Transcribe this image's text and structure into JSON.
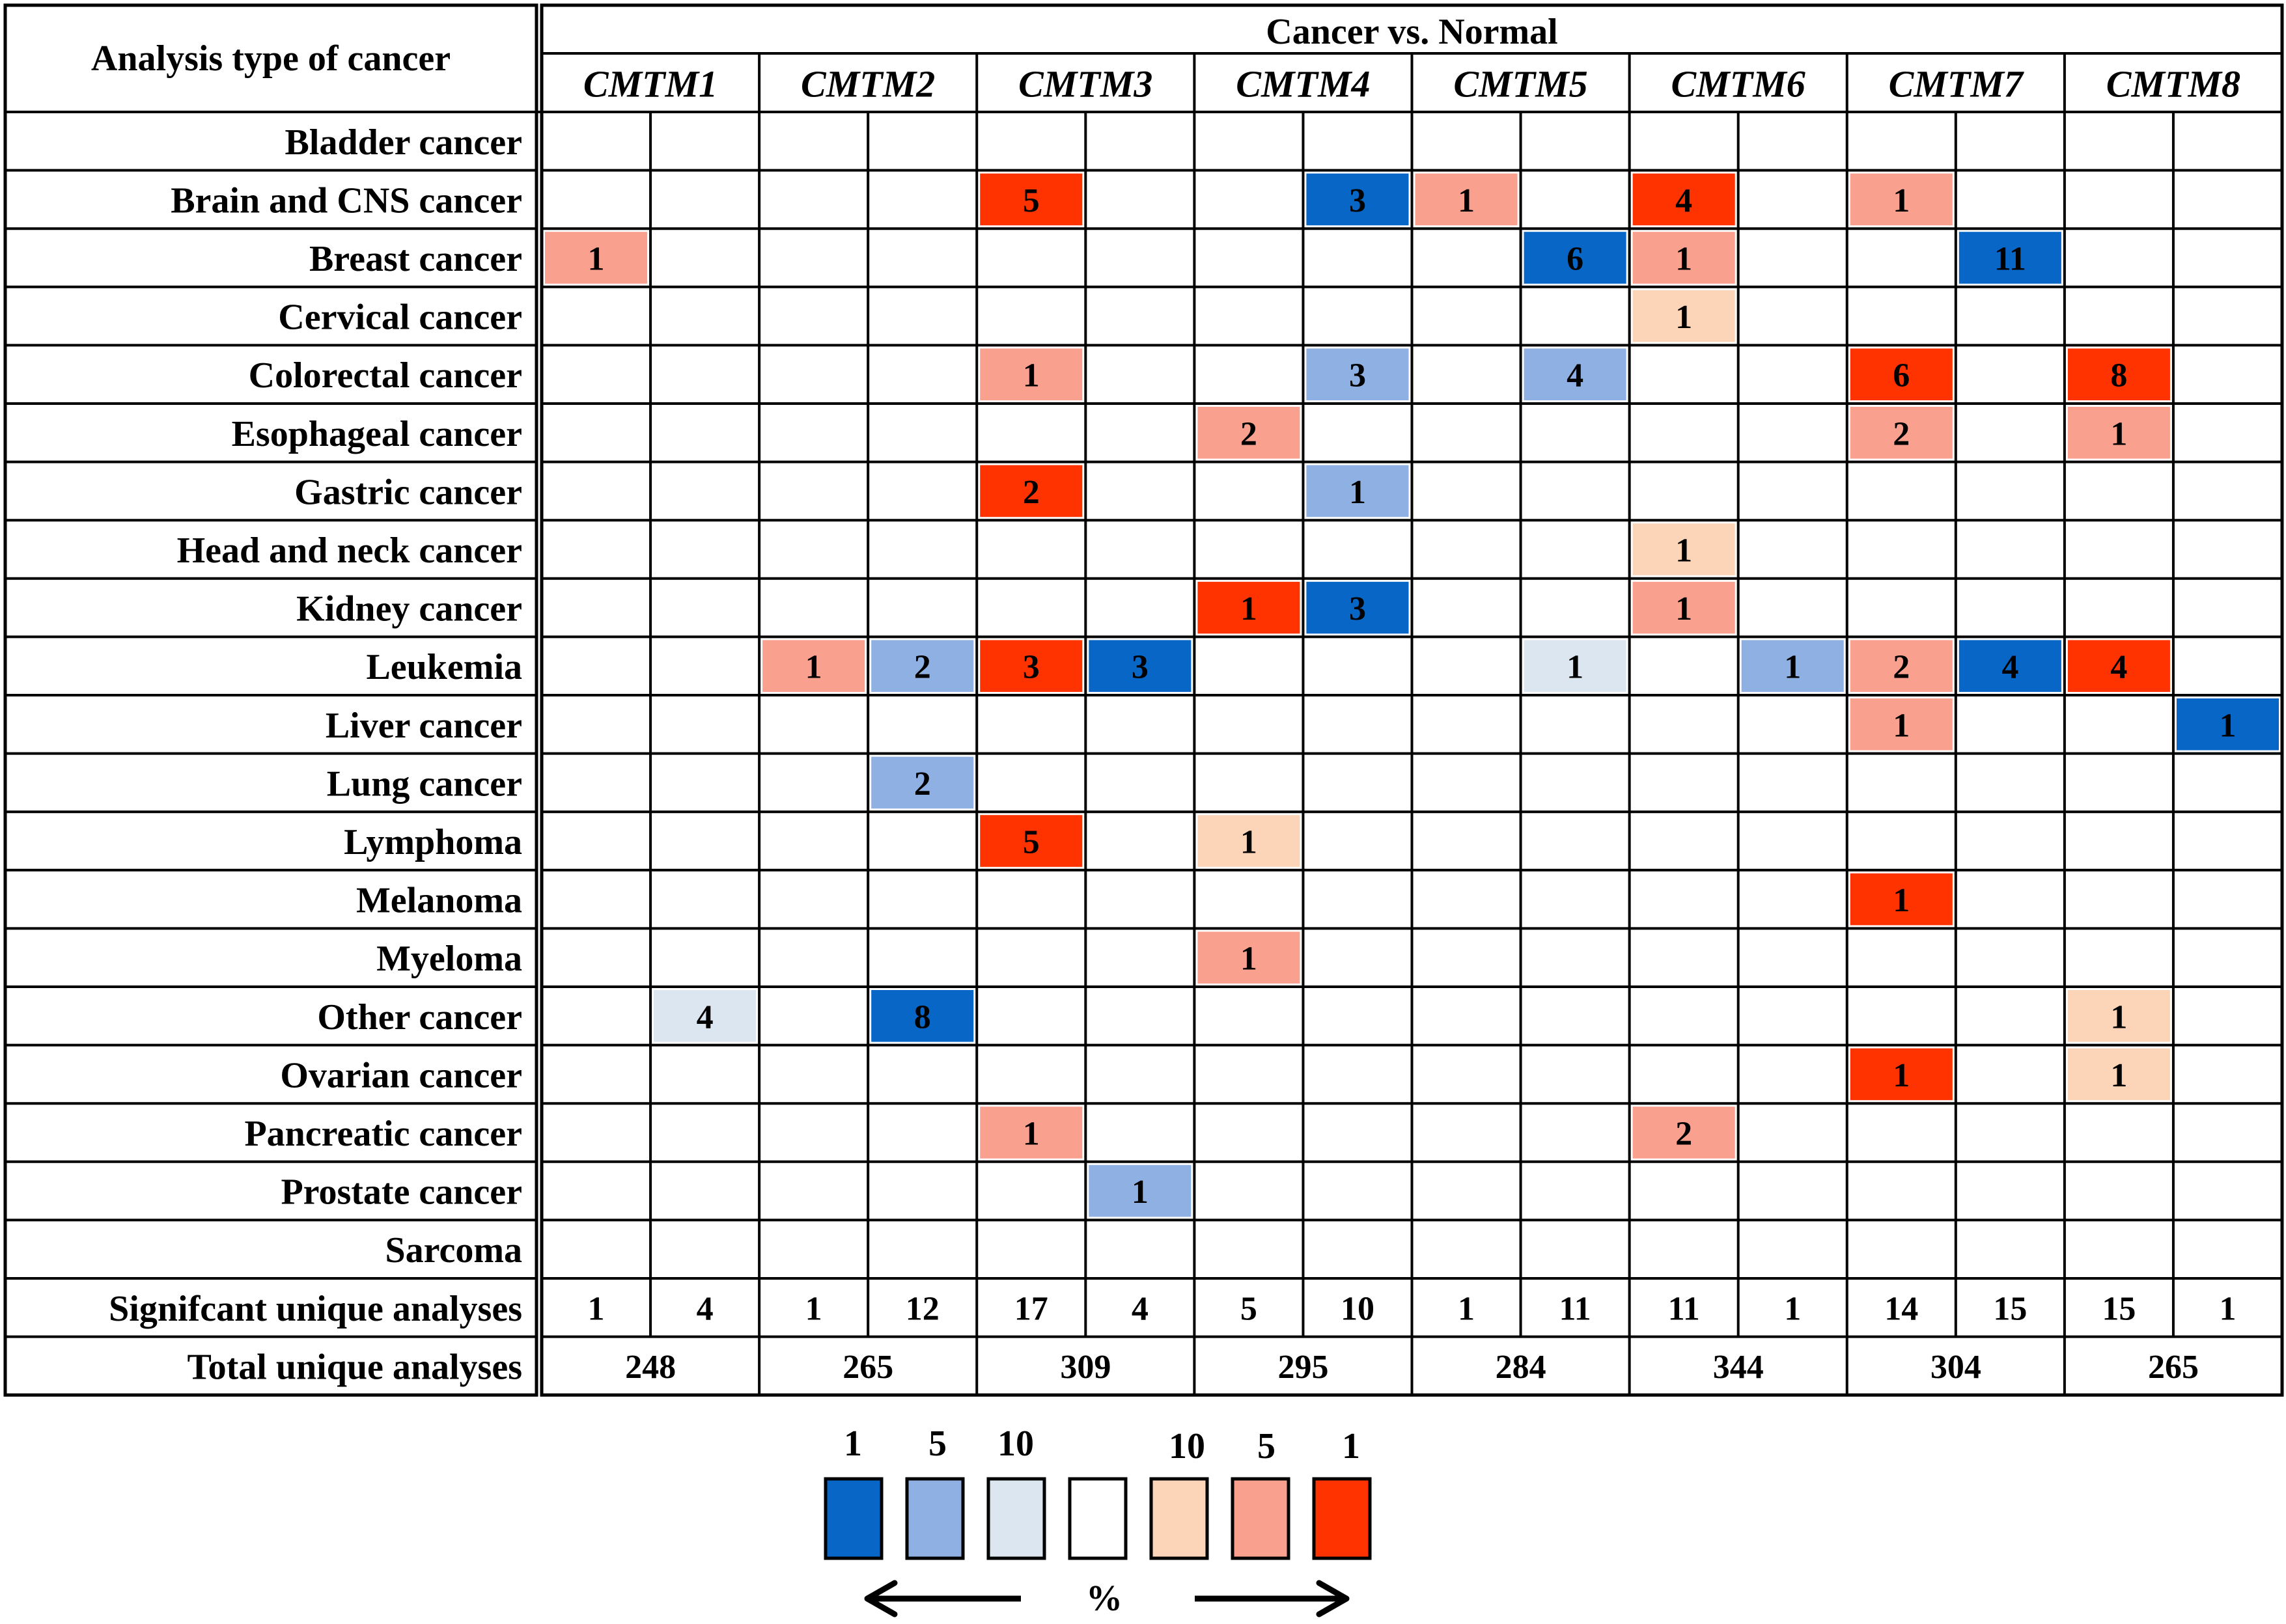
{
  "chart_data": {
    "type": "heatmap",
    "corner_label": "Analysis type of cancer",
    "group_header": "Cancer vs. Normal",
    "genes": [
      "CMTM1",
      "CMTM2",
      "CMTM3",
      "CMTM4",
      "CMTM5",
      "CMTM6",
      "CMTM7",
      "CMTM8"
    ],
    "row_labels": [
      "Bladder cancer",
      "Brain and CNS cancer",
      "Breast cancer",
      "Cervical cancer",
      "Colorectal cancer",
      "Esophageal cancer",
      "Gastric cancer",
      "Head and neck cancer",
      "Kidney cancer",
      "Leukemia",
      "Liver cancer",
      "Lung cancer",
      "Lymphoma",
      "Melanoma",
      "Myeloma",
      "Other cancer",
      "Ovarian cancer",
      "Pancreatic cancer",
      "Prostate cancer",
      "Sarcoma"
    ],
    "colors": {
      "up_1": "#ff3300",
      "up_5": "#f9a08e",
      "up_10": "#fcd5b8",
      "down_1": "#0866c6",
      "down_5": "#8fb0e3",
      "down_10": "#dce6f1",
      "none": "#ffffff"
    },
    "cells": [
      [
        null,
        null,
        null,
        null,
        null,
        null,
        null,
        null,
        null,
        null,
        null,
        null,
        null,
        null,
        null,
        null
      ],
      [
        null,
        null,
        null,
        null,
        {
          "v": "5",
          "c": "up_1"
        },
        null,
        null,
        {
          "v": "3",
          "c": "down_1"
        },
        {
          "v": "1",
          "c": "up_5"
        },
        null,
        {
          "v": "4",
          "c": "up_1"
        },
        null,
        {
          "v": "1",
          "c": "up_5"
        },
        null,
        null,
        null
      ],
      [
        {
          "v": "1",
          "c": "up_5"
        },
        null,
        null,
        null,
        null,
        null,
        null,
        null,
        null,
        {
          "v": "6",
          "c": "down_1"
        },
        {
          "v": "1",
          "c": "up_5"
        },
        null,
        null,
        {
          "v": "11",
          "c": "down_1"
        },
        null,
        null
      ],
      [
        null,
        null,
        null,
        null,
        null,
        null,
        null,
        null,
        null,
        null,
        {
          "v": "1",
          "c": "up_10"
        },
        null,
        null,
        null,
        null,
        null
      ],
      [
        null,
        null,
        null,
        null,
        {
          "v": "1",
          "c": "up_5"
        },
        null,
        null,
        {
          "v": "3",
          "c": "down_5"
        },
        null,
        {
          "v": "4",
          "c": "down_5"
        },
        null,
        null,
        {
          "v": "6",
          "c": "up_1"
        },
        null,
        {
          "v": "8",
          "c": "up_1"
        },
        null
      ],
      [
        null,
        null,
        null,
        null,
        null,
        null,
        {
          "v": "2",
          "c": "up_5"
        },
        null,
        null,
        null,
        null,
        null,
        {
          "v": "2",
          "c": "up_5"
        },
        null,
        {
          "v": "1",
          "c": "up_5"
        },
        null
      ],
      [
        null,
        null,
        null,
        null,
        {
          "v": "2",
          "c": "up_1"
        },
        null,
        null,
        {
          "v": "1",
          "c": "down_5"
        },
        null,
        null,
        null,
        null,
        null,
        null,
        null,
        null
      ],
      [
        null,
        null,
        null,
        null,
        null,
        null,
        null,
        null,
        null,
        null,
        {
          "v": "1",
          "c": "up_10"
        },
        null,
        null,
        null,
        null,
        null
      ],
      [
        null,
        null,
        null,
        null,
        null,
        null,
        {
          "v": "1",
          "c": "up_1"
        },
        {
          "v": "3",
          "c": "down_1"
        },
        null,
        null,
        {
          "v": "1",
          "c": "up_5"
        },
        null,
        null,
        null,
        null,
        null
      ],
      [
        null,
        null,
        {
          "v": "1",
          "c": "up_5"
        },
        {
          "v": "2",
          "c": "down_5"
        },
        {
          "v": "3",
          "c": "up_1"
        },
        {
          "v": "3",
          "c": "down_1"
        },
        null,
        null,
        null,
        {
          "v": "1",
          "c": "down_10"
        },
        null,
        {
          "v": "1",
          "c": "down_5"
        },
        {
          "v": "2",
          "c": "up_5"
        },
        {
          "v": "4",
          "c": "down_1"
        },
        {
          "v": "4",
          "c": "up_1"
        },
        null
      ],
      [
        null,
        null,
        null,
        null,
        null,
        null,
        null,
        null,
        null,
        null,
        null,
        null,
        {
          "v": "1",
          "c": "up_5"
        },
        null,
        null,
        {
          "v": "1",
          "c": "down_1"
        }
      ],
      [
        null,
        null,
        null,
        {
          "v": "2",
          "c": "down_5"
        },
        null,
        null,
        null,
        null,
        null,
        null,
        null,
        null,
        null,
        null,
        null,
        null
      ],
      [
        null,
        null,
        null,
        null,
        {
          "v": "5",
          "c": "up_1"
        },
        null,
        {
          "v": "1",
          "c": "up_10"
        },
        null,
        null,
        null,
        null,
        null,
        null,
        null,
        null,
        null
      ],
      [
        null,
        null,
        null,
        null,
        null,
        null,
        null,
        null,
        null,
        null,
        null,
        null,
        {
          "v": "1",
          "c": "up_1"
        },
        null,
        null,
        null
      ],
      [
        null,
        null,
        null,
        null,
        null,
        null,
        {
          "v": "1",
          "c": "up_5"
        },
        null,
        null,
        null,
        null,
        null,
        null,
        null,
        null,
        null
      ],
      [
        null,
        {
          "v": "4",
          "c": "down_10"
        },
        null,
        {
          "v": "8",
          "c": "down_1"
        },
        null,
        null,
        null,
        null,
        null,
        null,
        null,
        null,
        null,
        null,
        {
          "v": "1",
          "c": "up_10"
        },
        null
      ],
      [
        null,
        null,
        null,
        null,
        null,
        null,
        null,
        null,
        null,
        null,
        null,
        null,
        {
          "v": "1",
          "c": "up_1"
        },
        null,
        {
          "v": "1",
          "c": "up_10"
        },
        null
      ],
      [
        null,
        null,
        null,
        null,
        {
          "v": "1",
          "c": "up_5"
        },
        null,
        null,
        null,
        null,
        null,
        {
          "v": "2",
          "c": "up_5"
        },
        null,
        null,
        null,
        null,
        null
      ],
      [
        null,
        null,
        null,
        null,
        null,
        {
          "v": "1",
          "c": "down_5"
        },
        null,
        null,
        null,
        null,
        null,
        null,
        null,
        null,
        null,
        null
      ],
      [
        null,
        null,
        null,
        null,
        null,
        null,
        null,
        null,
        null,
        null,
        null,
        null,
        null,
        null,
        null,
        null
      ]
    ],
    "significant_label": "Signifcant unique analyses",
    "significant": [
      "1",
      "4",
      "1",
      "12",
      "17",
      "4",
      "5",
      "10",
      "1",
      "11",
      "11",
      "1",
      "14",
      "15",
      "15",
      "1"
    ],
    "total_label": "Total unique analyses",
    "totals": [
      "248",
      "265",
      "309",
      "295",
      "284",
      "344",
      "304",
      "265"
    ],
    "legend": {
      "labels_down": [
        "1",
        "5",
        "10"
      ],
      "labels_up": [
        "10",
        "5",
        "1"
      ],
      "swatches": [
        "down_1",
        "down_5",
        "down_10",
        "none",
        "up_10",
        "up_5",
        "up_1"
      ],
      "unit": "%"
    }
  }
}
